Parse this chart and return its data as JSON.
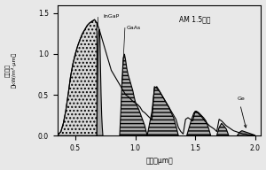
{
  "title": "AM 1.5頻譜",
  "xlabel": "波長（μm）",
  "ylabel": "放射照度\n（kW/m²·μm）",
  "xlim": [
    0.35,
    2.05
  ],
  "ylim": [
    0,
    1.6
  ],
  "yticks": [
    0,
    0.5,
    1.0,
    1.5
  ],
  "xticks": [
    0.5,
    1.0,
    1.5,
    2.0
  ],
  "InGaP_label": "InGaP",
  "GaAs_label": "GaAs",
  "Ge_label": "Ge",
  "background": "#e8e8e8",
  "sol_x": [
    0.35,
    0.38,
    0.4,
    0.42,
    0.44,
    0.46,
    0.48,
    0.5,
    0.52,
    0.54,
    0.56,
    0.58,
    0.6,
    0.62,
    0.64,
    0.66,
    0.68,
    0.7,
    0.72,
    0.74,
    0.76,
    0.78,
    0.8,
    0.82,
    0.84,
    0.86,
    0.88,
    0.9,
    0.92,
    0.94,
    0.96,
    0.98,
    1.0,
    1.02,
    1.04,
    1.06,
    1.08,
    1.1,
    1.12,
    1.14,
    1.16,
    1.18,
    1.2,
    1.22,
    1.24,
    1.26,
    1.28,
    1.3,
    1.32,
    1.34,
    1.36,
    1.38,
    1.4,
    1.42,
    1.44,
    1.46,
    1.48,
    1.5,
    1.52,
    1.54,
    1.56,
    1.58,
    1.6,
    1.62,
    1.64,
    1.66,
    1.68,
    1.7,
    1.72,
    1.74,
    1.76,
    1.78,
    1.8,
    1.82,
    1.84,
    1.86,
    1.88,
    1.9,
    1.92,
    1.94,
    1.96,
    1.98,
    2.0
  ],
  "sol_y": [
    0.0,
    0.05,
    0.15,
    0.3,
    0.5,
    0.72,
    0.88,
    1.0,
    1.1,
    1.18,
    1.25,
    1.3,
    1.35,
    1.38,
    1.4,
    1.42,
    1.38,
    1.3,
    1.2,
    1.1,
    1.0,
    0.9,
    0.8,
    0.75,
    0.7,
    0.65,
    0.6,
    0.55,
    0.5,
    0.48,
    0.45,
    0.42,
    0.4,
    0.38,
    0.35,
    0.3,
    0.28,
    0.25,
    0.22,
    0.2,
    0.6,
    0.58,
    0.55,
    0.5,
    0.45,
    0.4,
    0.35,
    0.3,
    0.25,
    0.2,
    0.1,
    0.05,
    0.02,
    0.2,
    0.22,
    0.2,
    0.18,
    0.3,
    0.28,
    0.25,
    0.22,
    0.18,
    0.15,
    0.12,
    0.1,
    0.08,
    0.05,
    0.2,
    0.18,
    0.15,
    0.12,
    0.1,
    0.08,
    0.06,
    0.05,
    0.04,
    0.03,
    0.02,
    0.02,
    0.01,
    0.01,
    0.005,
    0.0
  ]
}
